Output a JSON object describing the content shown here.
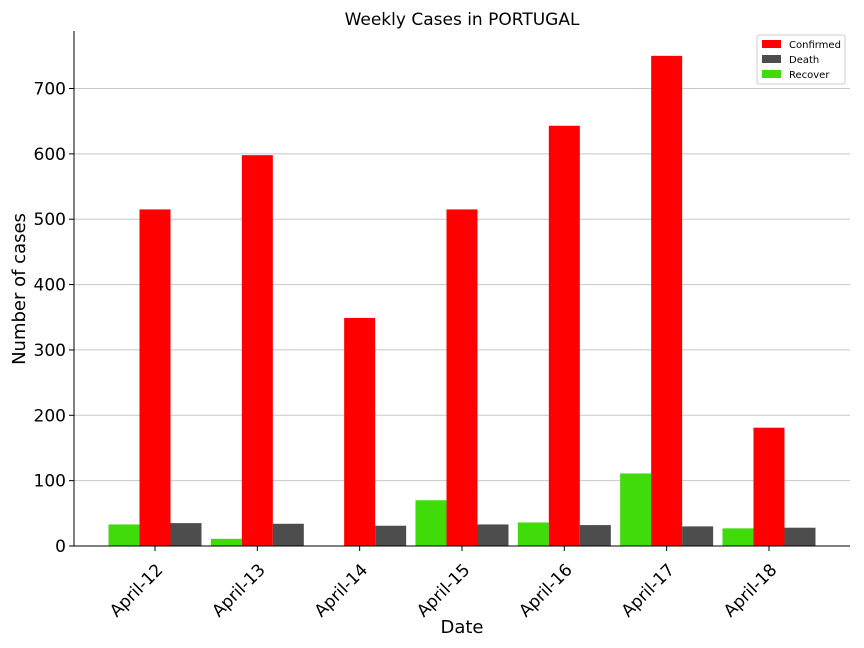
{
  "chart_data": {
    "type": "bar",
    "title": "Weekly Cases in PORTUGAL",
    "xlabel": "Date",
    "ylabel": "Number of cases",
    "categories": [
      "April-12",
      "April-13",
      "April-14",
      "April-15",
      "April-16",
      "April-17",
      "April-18"
    ],
    "series": [
      {
        "name": "Recover",
        "color": "#3fdc0a",
        "values": [
          33,
          11,
          0,
          70,
          36,
          111,
          27
        ]
      },
      {
        "name": "Confirmed",
        "color": "#ff0000",
        "values": [
          515,
          598,
          349,
          515,
          643,
          750,
          181
        ]
      },
      {
        "name": "Death",
        "color": "#4d4d4d",
        "values": [
          35,
          34,
          31,
          33,
          32,
          30,
          28
        ]
      }
    ],
    "legend_order": [
      "Confirmed",
      "Death",
      "Recover"
    ],
    "yticks": [
      0,
      100,
      200,
      300,
      400,
      500,
      600,
      700
    ],
    "ylim": [
      0,
      788
    ],
    "grid": "horizontal",
    "legend_position": "top-right"
  }
}
